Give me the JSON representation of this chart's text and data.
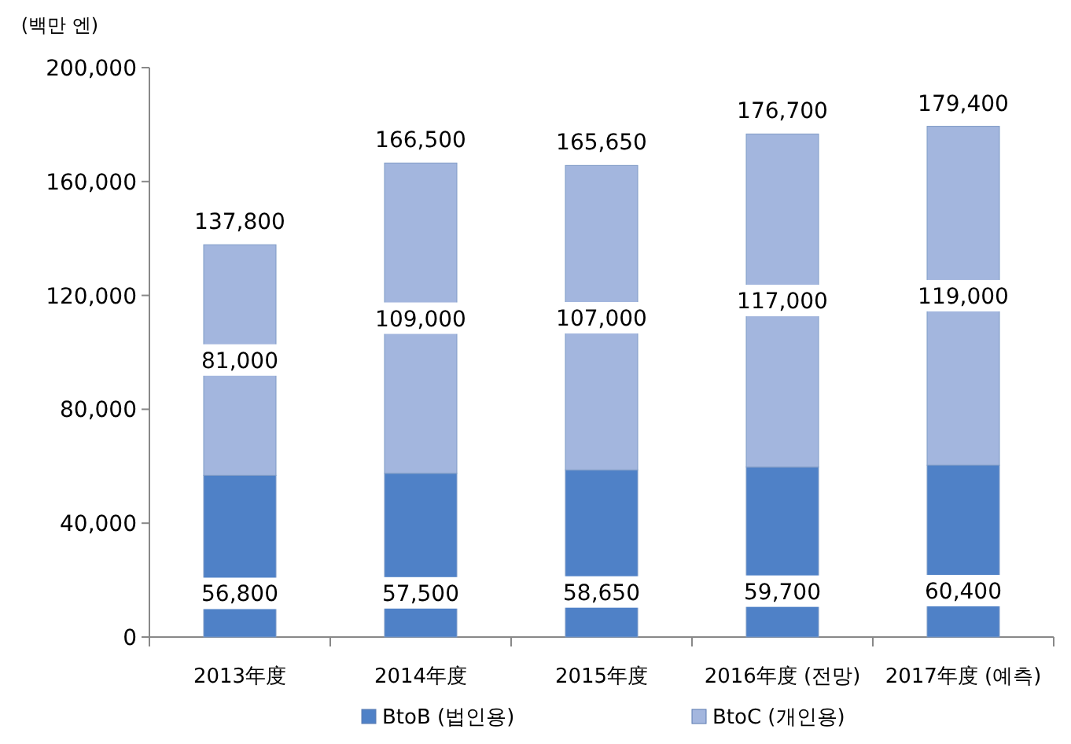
{
  "chart_data": {
    "type": "bar",
    "stacked": true,
    "ylabel": "(백만 엔)",
    "categories": [
      "2013年度",
      "2014年度",
      "2015年度",
      "2016年度 (전망)",
      "2017年度 (예측)"
    ],
    "series": [
      {
        "name": "BtoB (법인용)",
        "color": "#4f81c7",
        "values": [
          56800,
          57500,
          58650,
          59700,
          60400
        ],
        "value_labels": [
          "56,800",
          "57,500",
          "58,650",
          "59,700",
          "60,400"
        ]
      },
      {
        "name": "BtoC (개인용)",
        "color": "#a3b6de",
        "values": [
          81000,
          109000,
          107000,
          117000,
          119000
        ],
        "value_labels": [
          "81,000",
          "109,000",
          "107,000",
          "117,000",
          "119,000"
        ]
      }
    ],
    "ylim": [
      0,
      200000
    ],
    "yticks": [
      0,
      {
        "value": 40000,
        "label": "40,000"
      },
      {
        "value": 80000,
        "label": "80,000"
      },
      {
        "value": 120000,
        "label": "120,000"
      },
      {
        "value": 160000,
        "label": "160,000"
      },
      {
        "value": 200000,
        "label": "200,000"
      }
    ],
    "totals": [
      "137,800",
      "166,500",
      "165,650",
      "176,700",
      "179,400"
    ],
    "legend": "bottom"
  }
}
